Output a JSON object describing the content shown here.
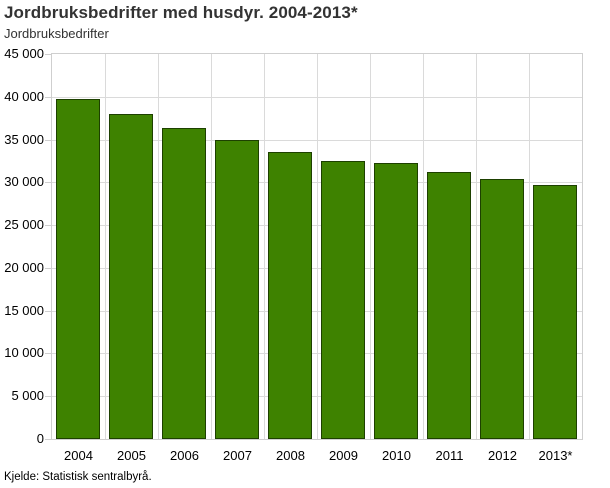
{
  "header": {
    "title": "Jordbruksbedrifter med husdyr. 2004-2013*",
    "subtitle": "Jordbruksbedrifter"
  },
  "footer": {
    "source": "Kjelde: Statistisk sentralbyrå."
  },
  "colors": {
    "bar_fill": "#3e8200",
    "bar_border": "#1d4000",
    "gridline": "#dadada",
    "plot_border": "#cfcfcf",
    "title_text": "#333333",
    "axis_text": "#000000"
  },
  "chart_data": {
    "type": "bar",
    "title": "Jordbruksbedrifter med husdyr. 2004-2013*",
    "ylabel": "Jordbruksbedrifter",
    "xlabel": "",
    "categories": [
      "2004",
      "2005",
      "2006",
      "2007",
      "2008",
      "2009",
      "2010",
      "2011",
      "2012",
      "2013*"
    ],
    "values": [
      39700,
      38000,
      36400,
      34900,
      33600,
      32500,
      32250,
      31150,
      30350,
      29700
    ],
    "ylim": [
      0,
      45000
    ],
    "ytick_step": 5000,
    "ytick_labels": [
      "0",
      "5 000",
      "10 000",
      "15 000",
      "20 000",
      "25 000",
      "30 000",
      "35 000",
      "40 000",
      "45 000"
    ],
    "grid": "both",
    "legend": "none",
    "source": "Kjelde: Statistisk sentralbyrå."
  }
}
